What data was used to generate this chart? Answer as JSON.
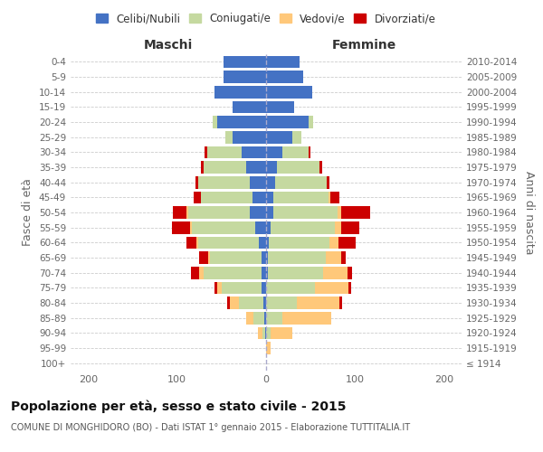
{
  "age_groups": [
    "100+",
    "95-99",
    "90-94",
    "85-89",
    "80-84",
    "75-79",
    "70-74",
    "65-69",
    "60-64",
    "55-59",
    "50-54",
    "45-49",
    "40-44",
    "35-39",
    "30-34",
    "25-29",
    "20-24",
    "15-19",
    "10-14",
    "5-9",
    "0-4"
  ],
  "birth_years": [
    "≤ 1914",
    "1915-1919",
    "1920-1924",
    "1925-1929",
    "1930-1934",
    "1935-1939",
    "1940-1944",
    "1945-1949",
    "1950-1954",
    "1955-1959",
    "1960-1964",
    "1965-1969",
    "1970-1974",
    "1975-1979",
    "1980-1984",
    "1985-1989",
    "1990-1994",
    "1995-1999",
    "2000-2004",
    "2005-2009",
    "2010-2014"
  ],
  "male": {
    "celibi": [
      0,
      0,
      1,
      2,
      3,
      5,
      5,
      5,
      8,
      12,
      18,
      15,
      18,
      22,
      28,
      38,
      55,
      38,
      58,
      48,
      48
    ],
    "coniugati": [
      0,
      0,
      3,
      12,
      28,
      45,
      65,
      58,
      68,
      72,
      70,
      58,
      58,
      48,
      38,
      8,
      5,
      0,
      0,
      0,
      0
    ],
    "vedovi": [
      0,
      0,
      5,
      8,
      10,
      5,
      5,
      2,
      2,
      2,
      2,
      0,
      0,
      0,
      0,
      0,
      0,
      0,
      0,
      0,
      0
    ],
    "divorziati": [
      0,
      0,
      0,
      0,
      3,
      3,
      10,
      10,
      12,
      20,
      15,
      8,
      3,
      3,
      3,
      0,
      0,
      0,
      0,
      0,
      0
    ]
  },
  "female": {
    "nubili": [
      0,
      0,
      0,
      0,
      0,
      0,
      2,
      2,
      3,
      5,
      8,
      8,
      10,
      12,
      18,
      30,
      48,
      32,
      52,
      42,
      38
    ],
    "coniugate": [
      0,
      0,
      5,
      18,
      35,
      55,
      62,
      65,
      68,
      72,
      72,
      62,
      58,
      48,
      30,
      10,
      5,
      0,
      0,
      0,
      0
    ],
    "vedove": [
      0,
      5,
      25,
      55,
      48,
      38,
      28,
      18,
      10,
      8,
      5,
      2,
      0,
      0,
      0,
      0,
      0,
      0,
      0,
      0,
      0
    ],
    "divorziate": [
      0,
      0,
      0,
      0,
      3,
      3,
      5,
      5,
      20,
      20,
      32,
      10,
      3,
      3,
      2,
      0,
      0,
      0,
      0,
      0,
      0
    ]
  },
  "colors": {
    "celibi": "#4472c4",
    "coniugati": "#c5d9a0",
    "vedovi": "#ffc87a",
    "divorziati": "#cc0000"
  },
  "xlim": 220,
  "title": "Popolazione per età, sesso e stato civile - 2015",
  "subtitle": "COMUNE DI MONGHIDORO (BO) - Dati ISTAT 1° gennaio 2015 - Elaborazione TUTTITALIA.IT",
  "ylabel_left": "Fasce di età",
  "ylabel_right": "Anni di nascita",
  "xlabel_left": "Maschi",
  "xlabel_right": "Femmine",
  "legend_labels": [
    "Celibi/Nubili",
    "Coniugati/e",
    "Vedovi/e",
    "Divorziati/e"
  ]
}
